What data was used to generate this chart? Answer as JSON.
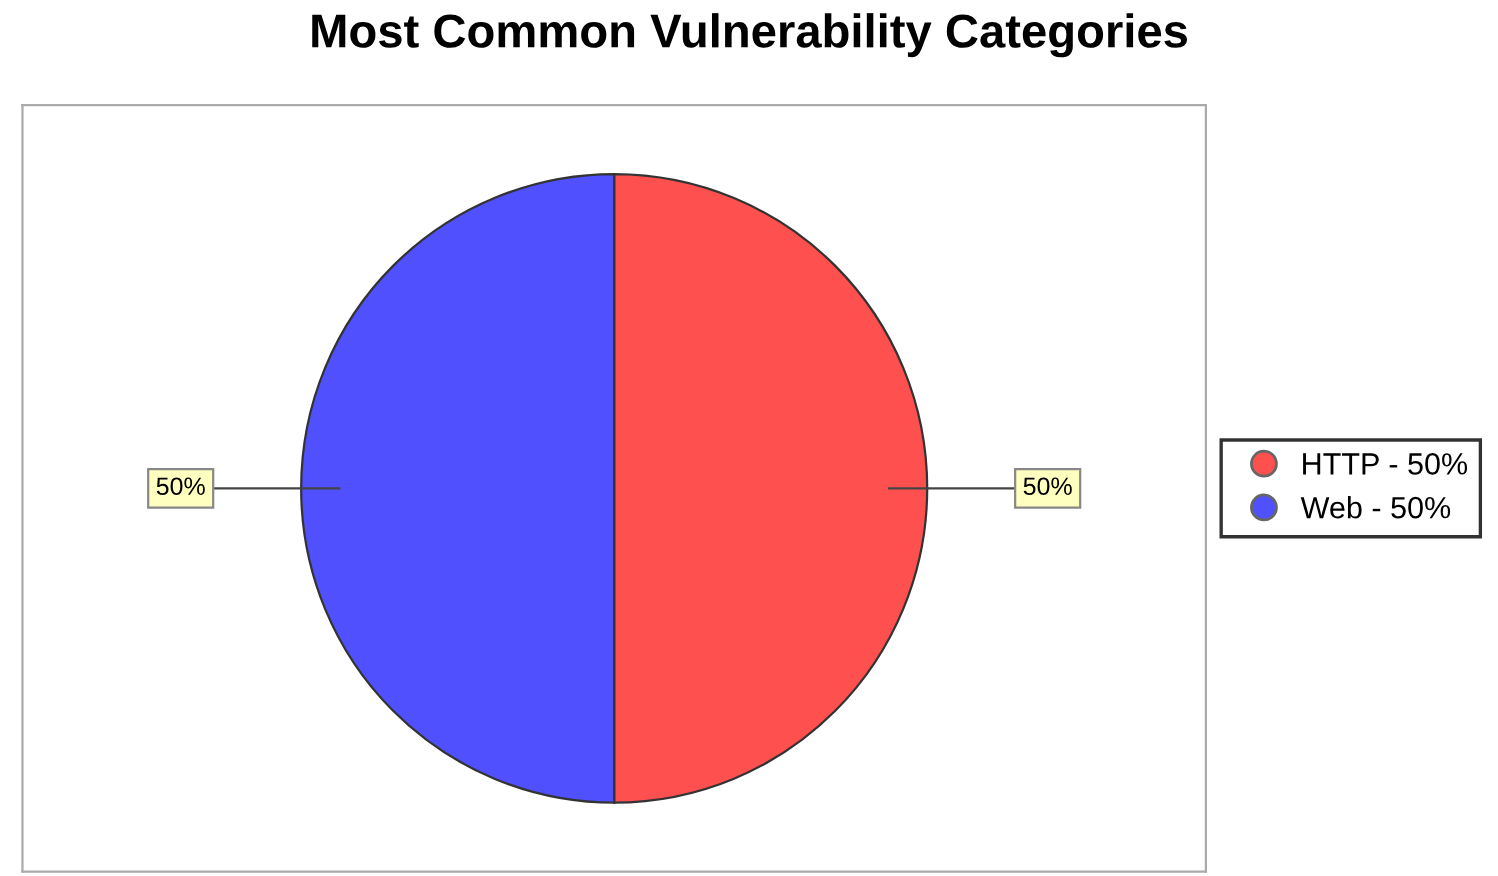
{
  "chart_data": {
    "type": "pie",
    "title": "Most Common Vulnerability Categories",
    "categories": [
      "HTTP - 50%",
      "Web - 50%"
    ],
    "values": [
      50,
      50
    ],
    "colors": [
      "#ff5050",
      "#5050ff"
    ],
    "value_labels": [
      "50%",
      "50%"
    ],
    "legend": "right"
  }
}
